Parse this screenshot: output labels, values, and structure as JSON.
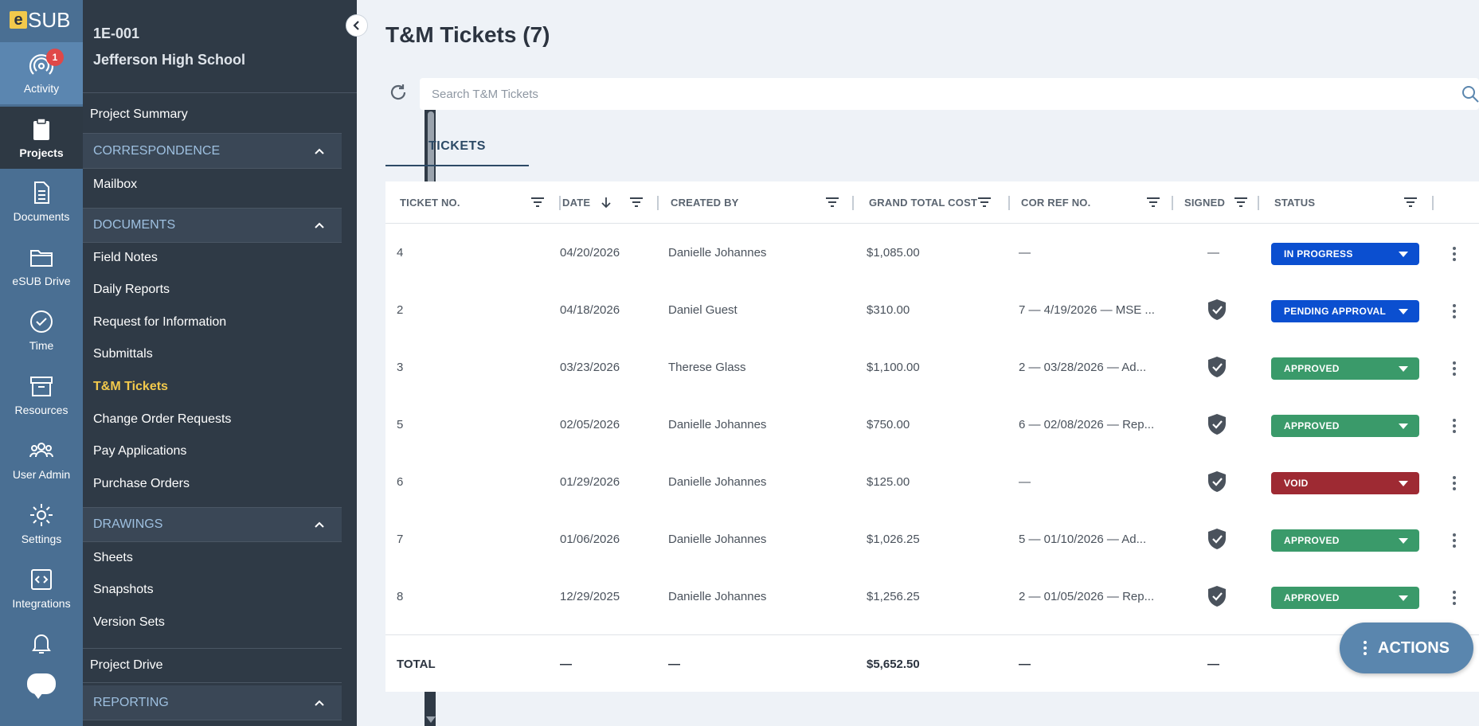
{
  "rail": {
    "logo_e": "e",
    "logo_sub": "SUB",
    "activity_badge": "1",
    "items": [
      {
        "label": "Activity"
      },
      {
        "label": "Projects"
      },
      {
        "label": "Documents"
      },
      {
        "label": "eSUB Drive"
      },
      {
        "label": "Time"
      },
      {
        "label": "Resources"
      },
      {
        "label": "User Admin"
      },
      {
        "label": "Settings"
      },
      {
        "label": "Integrations"
      }
    ]
  },
  "project": {
    "code": "1E-001",
    "name": "Jefferson High School"
  },
  "nav": {
    "project_summary": "Project Summary",
    "correspondence": "CORRESPONDENCE",
    "mailbox": "Mailbox",
    "documents": "DOCUMENTS",
    "doc_items": [
      "Field Notes",
      "Daily Reports",
      "Request for Information",
      "Submittals",
      "T&M Tickets",
      "Change Order Requests",
      "Pay Applications",
      "Purchase Orders"
    ],
    "drawings": "DRAWINGS",
    "drawing_items": [
      "Sheets",
      "Snapshots",
      "Version Sets"
    ],
    "project_drive": "Project Drive",
    "reporting": "REPORTING"
  },
  "main": {
    "title": "T&M Tickets (7)",
    "search_placeholder": "Search T&M Tickets",
    "tab": "TICKETS",
    "columns": [
      "TICKET NO.",
      "DATE",
      "CREATED BY",
      "GRAND TOTAL COST",
      "COR REF NO.",
      "SIGNED",
      "STATUS"
    ],
    "rows": [
      {
        "ticket": "4",
        "date": "04/20/2026",
        "created_by": "Danielle Johannes",
        "cost": "$1,085.00",
        "cor": "—",
        "signed": "—",
        "status": "IN PROGRESS",
        "status_color": "#0b4fd0"
      },
      {
        "ticket": "2",
        "date": "04/18/2026",
        "created_by": "Daniel Guest",
        "cost": "$310.00",
        "cor": "7 — 4/19/2026 — MSE ...",
        "signed": "shield",
        "status": "PENDING APPROVAL",
        "status_color": "#0b4fd0"
      },
      {
        "ticket": "3",
        "date": "03/23/2026",
        "created_by": "Therese Glass",
        "cost": "$1,100.00",
        "cor": "2 — 03/28/2026 — Ad...",
        "signed": "shield",
        "status": "APPROVED",
        "status_color": "#3a9a6a"
      },
      {
        "ticket": "5",
        "date": "02/05/2026",
        "created_by": "Danielle Johannes",
        "cost": "$750.00",
        "cor": "6 — 02/08/2026 — Rep...",
        "signed": "shield",
        "status": "APPROVED",
        "status_color": "#3a9a6a"
      },
      {
        "ticket": "6",
        "date": "01/29/2026",
        "created_by": "Danielle Johannes",
        "cost": "$125.00",
        "cor": "—",
        "signed": "shield",
        "status": "VOID",
        "status_color": "#9e2a33"
      },
      {
        "ticket": "7",
        "date": "01/06/2026",
        "created_by": "Danielle Johannes",
        "cost": "$1,026.25",
        "cor": "5 — 01/10/2026 — Ad...",
        "signed": "shield",
        "status": "APPROVED",
        "status_color": "#3a9a6a"
      },
      {
        "ticket": "8",
        "date": "12/29/2025",
        "created_by": "Danielle Johannes",
        "cost": "$1,256.25",
        "cor": "2 — 01/05/2026 — Rep...",
        "signed": "shield",
        "status": "APPROVED",
        "status_color": "#3a9a6a"
      }
    ],
    "total": {
      "label": "TOTAL",
      "date": "—",
      "created_by": "—",
      "cost": "$5,652.50",
      "cor": "—",
      "signed": "—"
    },
    "actions_label": "ACTIONS"
  }
}
